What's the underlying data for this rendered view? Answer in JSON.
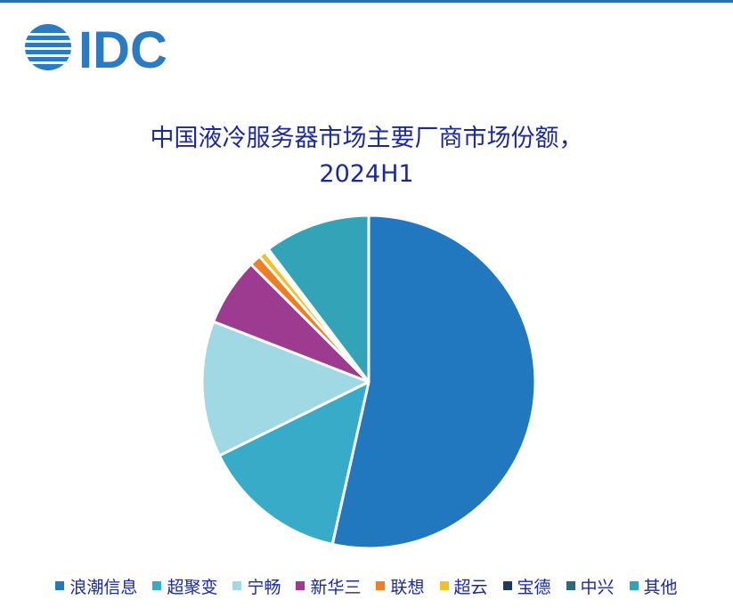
{
  "logo": {
    "text": "IDC",
    "color": "#2a7bc4"
  },
  "chart_data": {
    "type": "pie",
    "title": "中国液冷服务器市场主要厂商市场份额，",
    "subtitle": "2024H1",
    "start": "12 o'clock",
    "direction": "clockwise",
    "legend_position": "bottom",
    "slices": [
      {
        "label": "浪潮信息",
        "value": 53.5,
        "color": "#2278be"
      },
      {
        "label": "超聚变",
        "value": 14.2,
        "color": "#37abc7"
      },
      {
        "label": "宁畅",
        "value": 13.2,
        "color": "#a0d8e4"
      },
      {
        "label": "新华三",
        "value": 6.6,
        "color": "#9c3b8f"
      },
      {
        "label": "联想",
        "value": 1.1,
        "color": "#ef7d22"
      },
      {
        "label": "超云",
        "value": 0.7,
        "color": "#f1c02d"
      },
      {
        "label": "宝德",
        "value": 0.2,
        "color": "#1d3a5e"
      },
      {
        "label": "中兴",
        "value": 0.2,
        "color": "#2c6a74"
      },
      {
        "label": "其他",
        "value": 10.3,
        "color": "#33a3b8"
      }
    ]
  }
}
